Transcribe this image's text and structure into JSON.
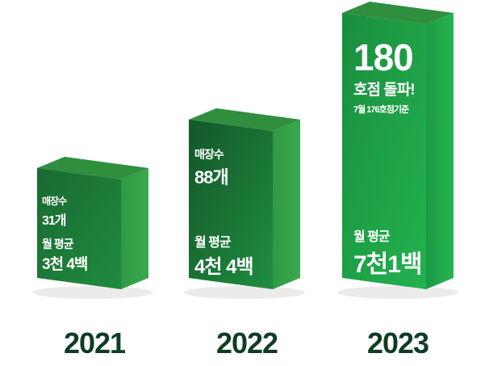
{
  "chart_data": {
    "type": "bar",
    "categories": [
      "2021",
      "2022",
      "2023"
    ],
    "series": [
      {
        "values": [
          31,
          88,
          180
        ]
      }
    ],
    "bars": [
      {
        "year": "2021",
        "store_label": "매장수",
        "store_value": "31개",
        "avg_label": "월 평균",
        "avg_value": "3천 4백"
      },
      {
        "year": "2022",
        "store_label": "매장수",
        "store_value": "88개",
        "avg_label": "월 평균",
        "avg_value": "4천 4백"
      },
      {
        "year": "2023",
        "store_headline": "180",
        "store_suffix": "호점 돌파!",
        "store_note": "7월 176호점기준",
        "avg_label": "월 평균",
        "avg_value": "7천1백"
      }
    ],
    "colors": {
      "front_dark": "#15602d",
      "front_light": "#22a94c",
      "side": "#0f4a22",
      "top": "#2f8f3f",
      "year_text": "#0e3d24"
    }
  }
}
